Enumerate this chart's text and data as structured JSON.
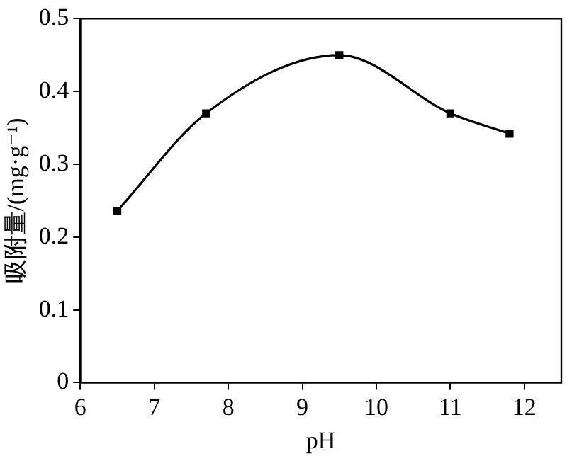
{
  "chart_data": {
    "type": "line",
    "xlabel": "pH",
    "ylabel": "吸附量/(mg·g⁻¹)",
    "x": [
      6.5,
      7.7,
      9.5,
      11,
      11.8
    ],
    "series": [
      {
        "color": "#000000",
        "values": [
          0.236,
          0.37,
          0.45,
          0.37,
          0.342
        ]
      }
    ],
    "xlim": [
      6,
      12.5
    ],
    "xticks": [
      6,
      7,
      8,
      9,
      10,
      11,
      12
    ],
    "ylim": [
      0,
      0.5
    ],
    "yticks": [
      0,
      0.1,
      0.2,
      0.3,
      0.4,
      0.5
    ],
    "grid": false,
    "legend": false,
    "marker": "square",
    "line_style": "solid"
  }
}
